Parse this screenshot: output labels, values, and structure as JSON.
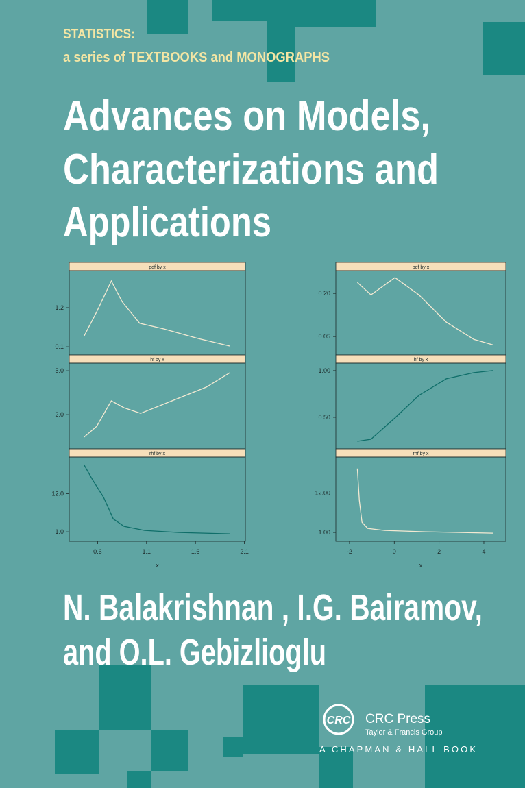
{
  "header": {
    "series_name": "STATISTICS:",
    "series_subtitle": "a series of TEXTBOOKS and MONOGRAPHS"
  },
  "title": [
    "Advances on Models,",
    "Characterizations and",
    "Applications"
  ],
  "authors": [
    "N. Balakrishnan , I.G. Bairamov,",
    "and O.L. Gebizlioglu"
  ],
  "publisher": {
    "logo": "CRC",
    "name": "CRC Press",
    "group": "Taylor & Francis Group",
    "imprint": "A CHAPMAN & HALL BOOK"
  },
  "chart_data": [
    {
      "type": "line",
      "title": "pdf by x",
      "color": "#f3e9d2",
      "xlim": [
        0.31,
        2.11
      ],
      "ylim": [
        -0.13,
        2.24
      ],
      "yticks": [
        1.2,
        0.1
      ],
      "x": [
        0.46,
        0.59,
        0.74,
        0.85,
        1.03,
        1.28,
        1.63,
        1.95
      ],
      "values": [
        0.39,
        1.08,
        1.95,
        1.37,
        0.76,
        0.6,
        0.33,
        0.12
      ]
    },
    {
      "type": "line",
      "title": "hf by x",
      "color": "#f3e9d2",
      "xlim": [
        0.31,
        2.11
      ],
      "ylim": [
        -0.34,
        5.52
      ],
      "yticks": [
        {
          "value": 5,
          "label": "5.0"
        },
        {
          "value": 2,
          "label": "2.0"
        }
      ],
      "x": [
        0.46,
        0.59,
        0.74,
        0.87,
        1.04,
        1.36,
        1.71,
        1.95
      ],
      "values": [
        0.45,
        1.2,
        2.94,
        2.47,
        2.09,
        2.94,
        3.88,
        4.86
      ]
    },
    {
      "type": "line",
      "title": "rhf by x",
      "color": "#0f6e69",
      "xlim": [
        0.31,
        2.11
      ],
      "ylim": [
        -1.75,
        22.6
      ],
      "yticks": [
        {
          "value": 12,
          "label": "12.0"
        },
        {
          "value": 1,
          "label": "1.0"
        }
      ],
      "xticks": [
        0.6,
        1.1,
        1.6,
        2.1
      ],
      "xlabel": "x",
      "x": [
        0.46,
        0.55,
        0.66,
        0.76,
        0.87,
        1.08,
        1.43,
        1.95
      ],
      "values": [
        20.45,
        15.93,
        11.02,
        4.73,
        2.57,
        1.39,
        0.8,
        0.41
      ]
    },
    {
      "type": "line",
      "title": "pdf by x",
      "color": "#f3e9d2",
      "xlim": [
        -2.61,
        4.98
      ],
      "ylim": [
        -0.014,
        0.279
      ],
      "yticks": [
        {
          "value": 0.2,
          "label": "0.20"
        },
        0.05
      ],
      "x": [
        -1.65,
        -1.04,
        0.03,
        1.1,
        2.32,
        3.55,
        4.4
      ],
      "values": [
        0.238,
        0.195,
        0.255,
        0.195,
        0.1,
        0.04,
        0.021
      ]
    },
    {
      "type": "line",
      "title": "hf by x",
      "color": "#0f6e69",
      "xlim": [
        -2.61,
        4.98
      ],
      "ylim": [
        0.162,
        1.08
      ],
      "yticks": [
        {
          "value": 1,
          "label": "1.00"
        },
        {
          "value": 0.5,
          "label": "0.50"
        }
      ],
      "x": [
        -1.65,
        -1.04,
        0.03,
        1.1,
        2.32,
        3.55,
        4.4
      ],
      "values": [
        0.243,
        0.265,
        0.493,
        0.735,
        0.912,
        0.978,
        1
      ]
    },
    {
      "type": "line",
      "title": "rhf by x",
      "color": "#f3e9d2",
      "xlim": [
        -2.61,
        4.98
      ],
      "ylim": [
        -1.47,
        22.05
      ],
      "yticks": [
        {
          "value": 12,
          "label": "12.00"
        },
        {
          "value": 1,
          "label": "1.00"
        }
      ],
      "xticks": [
        -2,
        0,
        2,
        4
      ],
      "xlabel": "x",
      "x": [
        -1.65,
        -1.56,
        -1.44,
        -1.19,
        -0.43,
        1.41,
        4.4
      ],
      "values": [
        18.83,
        9.91,
        3.84,
        2.14,
        1.57,
        1.19,
        0.81
      ]
    }
  ]
}
